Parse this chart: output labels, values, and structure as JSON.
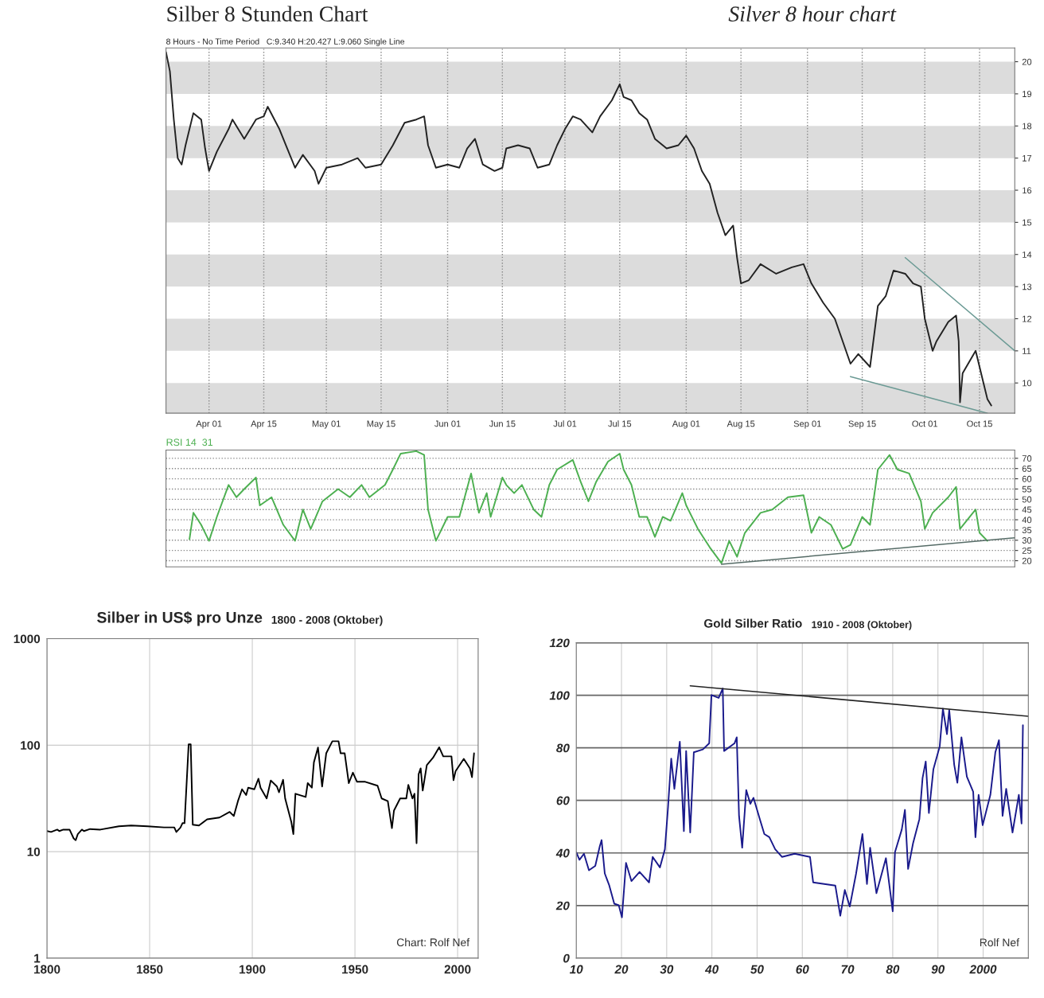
{
  "chart_data": [
    {
      "type": "line",
      "title": "Silber 8 Stunden Chart",
      "subtitle": "Silver 8 hour chart",
      "annotations": [
        "8 Hours - No Time Period   C:9.340 H:20.427 L:9.060 Single Line"
      ],
      "xlim": [
        "2008-03-21",
        "2008-10-24"
      ],
      "ylim": [
        9.06,
        20.43
      ],
      "xticks": [
        {
          "value": "2008-04-01",
          "label": "Apr 01"
        },
        {
          "value": "2008-04-15",
          "label": "Apr 15"
        },
        {
          "value": "2008-05-01",
          "label": "May 01"
        },
        {
          "value": "2008-05-15",
          "label": "May 15"
        },
        {
          "value": "2008-06-01",
          "label": "Jun 01"
        },
        {
          "value": "2008-06-15",
          "label": "Jun 15"
        },
        {
          "value": "2008-07-01",
          "label": "Jul 01"
        },
        {
          "value": "2008-07-15",
          "label": "Jul 15"
        },
        {
          "value": "2008-08-01",
          "label": "Aug 01"
        },
        {
          "value": "2008-08-15",
          "label": "Aug 15"
        },
        {
          "value": "2008-09-01",
          "label": "Sep 01"
        },
        {
          "value": "2008-09-15",
          "label": "Sep 15"
        },
        {
          "value": "2008-10-01",
          "label": "Oct 01"
        },
        {
          "value": "2008-10-15",
          "label": "Oct 15"
        }
      ],
      "yticks": [
        10,
        11,
        12,
        13,
        14,
        15,
        16,
        17,
        18,
        19,
        20
      ],
      "grid": "x",
      "bands": [
        {
          "axis": "y",
          "from": 19,
          "to": 20,
          "color": "#dcdcdc"
        },
        {
          "axis": "y",
          "from": 17,
          "to": 18,
          "color": "#dcdcdc"
        },
        {
          "axis": "y",
          "from": 15,
          "to": 16,
          "color": "#dcdcdc"
        },
        {
          "axis": "y",
          "from": 13,
          "to": 14,
          "color": "#dcdcdc"
        },
        {
          "axis": "y",
          "from": 11,
          "to": 12,
          "color": "#dcdcdc"
        },
        {
          "axis": "y",
          "from": 9.06,
          "to": 10,
          "color": "#dcdcdc"
        }
      ],
      "series": [
        {
          "type": "line",
          "color": "#222222",
          "x": [
            "2008-03-21",
            "2008-03-22",
            "2008-03-23",
            "2008-03-24",
            "2008-03-25",
            "2008-03-26",
            "2008-03-28",
            "2008-03-30",
            "2008-03-31",
            "2008-04-01",
            "2008-04-03",
            "2008-04-06",
            "2008-04-07",
            "2008-04-10",
            "2008-04-13",
            "2008-04-15",
            "2008-04-16",
            "2008-04-19",
            "2008-04-21",
            "2008-04-23",
            "2008-04-25",
            "2008-04-28",
            "2008-04-29",
            "2008-05-01",
            "2008-05-05",
            "2008-05-09",
            "2008-05-11",
            "2008-05-15",
            "2008-05-18",
            "2008-05-21",
            "2008-05-24",
            "2008-05-26",
            "2008-05-27",
            "2008-05-29",
            "2008-06-01",
            "2008-06-04",
            "2008-06-06",
            "2008-06-08",
            "2008-06-10",
            "2008-06-13",
            "2008-06-15",
            "2008-06-16",
            "2008-06-19",
            "2008-06-22",
            "2008-06-24",
            "2008-06-27",
            "2008-06-29",
            "2008-07-01",
            "2008-07-03",
            "2008-07-05",
            "2008-07-08",
            "2008-07-10",
            "2008-07-13",
            "2008-07-15",
            "2008-07-16",
            "2008-07-18",
            "2008-07-20",
            "2008-07-22",
            "2008-07-24",
            "2008-07-27",
            "2008-07-30",
            "2008-08-01",
            "2008-08-03",
            "2008-08-05",
            "2008-08-07",
            "2008-08-09",
            "2008-08-11",
            "2008-08-13",
            "2008-08-14",
            "2008-08-15",
            "2008-08-17",
            "2008-08-20",
            "2008-08-24",
            "2008-08-28",
            "2008-08-31",
            "2008-09-02",
            "2008-09-05",
            "2008-09-08",
            "2008-09-10",
            "2008-09-12",
            "2008-09-14",
            "2008-09-17",
            "2008-09-19",
            "2008-09-21",
            "2008-09-23",
            "2008-09-26",
            "2008-09-28",
            "2008-09-30",
            "2008-10-01",
            "2008-10-03",
            "2008-10-04",
            "2008-10-07",
            "2008-10-09",
            "2008-10-09T16:00",
            "2008-10-10",
            "2008-10-10T16:00",
            "2008-10-14",
            "2008-10-15",
            "2008-10-16",
            "2008-10-17",
            "2008-10-18"
          ],
          "values": [
            20.3,
            19.7,
            18.2,
            17.0,
            16.8,
            17.4,
            18.4,
            18.2,
            17.3,
            16.6,
            17.2,
            17.9,
            18.2,
            17.6,
            18.2,
            18.3,
            18.6,
            17.9,
            17.3,
            16.7,
            17.1,
            16.6,
            16.2,
            16.7,
            16.8,
            17.0,
            16.7,
            16.8,
            17.4,
            18.1,
            18.2,
            18.3,
            17.4,
            16.7,
            16.8,
            16.7,
            17.3,
            17.6,
            16.8,
            16.6,
            16.7,
            17.3,
            17.4,
            17.3,
            16.7,
            16.8,
            17.4,
            17.9,
            18.3,
            18.2,
            17.8,
            18.3,
            18.8,
            19.3,
            18.9,
            18.8,
            18.4,
            18.2,
            17.6,
            17.3,
            17.4,
            17.7,
            17.3,
            16.6,
            16.2,
            15.3,
            14.6,
            14.9,
            13.9,
            13.1,
            13.2,
            13.7,
            13.4,
            13.6,
            13.7,
            13.1,
            12.5,
            12.0,
            11.3,
            10.6,
            10.9,
            10.5,
            12.4,
            12.7,
            13.5,
            13.4,
            13.1,
            13.0,
            12.0,
            11.0,
            11.3,
            11.9,
            12.1,
            11.3,
            9.4,
            10.3,
            11.0,
            10.5,
            10.0,
            9.5,
            9.3
          ]
        },
        {
          "type": "line",
          "color": "#6b9a94",
          "x": [
            "2008-09-26",
            "2008-10-24"
          ],
          "values": [
            13.9,
            11.0
          ]
        },
        {
          "type": "line",
          "color": "#6b9a94",
          "x": [
            "2008-09-12",
            "2008-10-17"
          ],
          "values": [
            10.2,
            9.06
          ]
        }
      ]
    },
    {
      "type": "line",
      "tick_labels": "y",
      "xlim": [
        "2008-03-21",
        "2008-10-24"
      ],
      "ylim": [
        17,
        74
      ],
      "yticks": [
        20,
        25,
        30,
        35,
        40,
        45,
        50,
        55,
        60,
        65,
        70
      ],
      "grid": "y",
      "series": [
        {
          "type": "line",
          "name": "RSI 14  31",
          "color": "#4caf50",
          "x": [
            "2008-03-27",
            "2008-03-28",
            "2008-03-30",
            "2008-04-01",
            "2008-04-03",
            "2008-04-06",
            "2008-04-08",
            "2008-04-10",
            "2008-04-13",
            "2008-04-14",
            "2008-04-17",
            "2008-04-20",
            "2008-04-23",
            "2008-04-25",
            "2008-04-27",
            "2008-04-30",
            "2008-05-04",
            "2008-05-07",
            "2008-05-10",
            "2008-05-12",
            "2008-05-16",
            "2008-05-18",
            "2008-05-20",
            "2008-05-24",
            "2008-05-26",
            "2008-05-27",
            "2008-05-29",
            "2008-06-01",
            "2008-06-04",
            "2008-06-07",
            "2008-06-09",
            "2008-06-11",
            "2008-06-12",
            "2008-06-15",
            "2008-06-16",
            "2008-06-18",
            "2008-06-20",
            "2008-06-23",
            "2008-06-25",
            "2008-06-27",
            "2008-06-29",
            "2008-07-03",
            "2008-07-05",
            "2008-07-07",
            "2008-07-09",
            "2008-07-12",
            "2008-07-15",
            "2008-07-16",
            "2008-07-18",
            "2008-07-20",
            "2008-07-22",
            "2008-07-24",
            "2008-07-26",
            "2008-07-28",
            "2008-07-31",
            "2008-08-01",
            "2008-08-04",
            "2008-08-07",
            "2008-08-10",
            "2008-08-12",
            "2008-08-14",
            "2008-08-16",
            "2008-08-20",
            "2008-08-23",
            "2008-08-27",
            "2008-08-31",
            "2008-09-02",
            "2008-09-04",
            "2008-09-07",
            "2008-09-10",
            "2008-09-12",
            "2008-09-15",
            "2008-09-17",
            "2008-09-19",
            "2008-09-22",
            "2008-09-24",
            "2008-09-27",
            "2008-09-30",
            "2008-10-01",
            "2008-10-03",
            "2008-10-07",
            "2008-10-09",
            "2008-10-10",
            "2008-10-14",
            "2008-10-15",
            "2008-10-17"
          ],
          "values": [
            30.5,
            43.4,
            37.5,
            29.7,
            41.4,
            57,
            51,
            55,
            60.6,
            47,
            51,
            37.5,
            29.7,
            45,
            35.5,
            49,
            55,
            51,
            57,
            51,
            57,
            64.5,
            72.3,
            73.5,
            71.6,
            45,
            29.7,
            41.4,
            41.4,
            62.6,
            43.4,
            53,
            41.4,
            60.6,
            57,
            53,
            57,
            45,
            41.4,
            57,
            64.5,
            69.2,
            58.6,
            49,
            58.6,
            68.4,
            72.3,
            64.5,
            57,
            41.4,
            41.4,
            31.6,
            41.4,
            39.5,
            53,
            47,
            35.5,
            26.6,
            18.8,
            29.7,
            21.9,
            33.6,
            43.4,
            45,
            51,
            52,
            33.6,
            41.4,
            37.5,
            25.8,
            27.7,
            41.4,
            37.5,
            64.5,
            71.6,
            64.5,
            62.6,
            49,
            35.5,
            43.4,
            51,
            56,
            35.5,
            45,
            33.6,
            29.7
          ]
        },
        {
          "type": "line",
          "color": "#556b66",
          "x": [
            "2008-08-10",
            "2008-10-24"
          ],
          "values": [
            18.3,
            31.2
          ]
        }
      ]
    },
    {
      "type": "line",
      "title": "Silber in US$ pro Unze",
      "subtitle": "1800 - 2008 (Oktober)",
      "annotations": [
        "Chart: Rolf Nef"
      ],
      "log": "y",
      "grid": true,
      "xlim": [
        1800,
        2010
      ],
      "ylim": [
        1,
        1000
      ],
      "xticks": [
        1800,
        1850,
        1900,
        1950,
        2000
      ],
      "yticks": [
        1,
        10,
        100,
        1000
      ],
      "series": [
        {
          "type": "line",
          "color": "#000000",
          "x": [
            1800,
            1802,
            1805,
            1806,
            1808,
            1811,
            1813,
            1814,
            1815,
            1817,
            1818,
            1821,
            1826,
            1835,
            1841,
            1849,
            1857,
            1862,
            1863,
            1865,
            1866,
            1867,
            1869,
            1870,
            1871,
            1874,
            1878,
            1884,
            1889,
            1891,
            1893,
            1895,
            1897,
            1898,
            1901,
            1903,
            1904,
            1907,
            1909,
            1912,
            1913,
            1915,
            1916,
            1919,
            1920,
            1921,
            1926,
            1927,
            1929,
            1930,
            1932,
            1934,
            1936,
            1939,
            1942,
            1943,
            1945,
            1947,
            1949,
            1951,
            1955,
            1961,
            1963,
            1966,
            1968,
            1969,
            1972,
            1975,
            1976,
            1978,
            1979,
            1980,
            1981,
            1982,
            1983,
            1985,
            1988,
            1991,
            1993,
            1997,
            1998,
            1999,
            2003,
            2006,
            2007,
            2008
          ],
          "values": [
            15.6,
            15.3,
            16.1,
            15.6,
            16.1,
            16.1,
            13.3,
            12.8,
            14.6,
            16.1,
            15.6,
            16.3,
            16.1,
            17.3,
            17.6,
            17.3,
            16.9,
            16.9,
            15.3,
            16.8,
            18.5,
            18.5,
            102,
            102,
            17.9,
            17.6,
            20.1,
            20.9,
            23.6,
            21.6,
            29.8,
            38.5,
            34.0,
            39.9,
            38.5,
            48.4,
            39.9,
            31.6,
            46.6,
            40.9,
            36.1,
            47.3,
            31.6,
            19.0,
            14.6,
            35.0,
            32.6,
            44.0,
            39.9,
            69,
            95,
            40.9,
            83.9,
            108.9,
            108.9,
            83.9,
            83.9,
            44.0,
            55.2,
            45.3,
            45.3,
            41.6,
            31.6,
            29.8,
            16.6,
            24.3,
            31.6,
            31.6,
            42.4,
            31.6,
            35.0,
            12.0,
            53.3,
            60.6,
            37.5,
            64.9,
            76.1,
            95.6,
            78.5,
            78.5,
            46.9,
            57.0,
            74.4,
            60.6,
            50.0,
            83.9
          ]
        }
      ]
    },
    {
      "type": "line",
      "title": "Gold Silber Ratio",
      "subtitle": "1910 - 2008 (Oktober)",
      "annotations": [
        "Rolf Nef"
      ],
      "grid": true,
      "xlim": [
        1910,
        2010
      ],
      "ylim": [
        0,
        120
      ],
      "xticks": [
        {
          "value": 1910,
          "label": "10"
        },
        {
          "value": 1920,
          "label": "20"
        },
        {
          "value": 1930,
          "label": "30"
        },
        {
          "value": 1940,
          "label": "40"
        },
        {
          "value": 1950,
          "label": "50"
        },
        {
          "value": 1960,
          "label": "60"
        },
        {
          "value": 1970,
          "label": "70"
        },
        {
          "value": 1980,
          "label": "80"
        },
        {
          "value": 1990,
          "label": "90"
        },
        2000
      ],
      "yticks": [
        0,
        20,
        40,
        60,
        80,
        100,
        120
      ],
      "series": [
        {
          "type": "line",
          "color": "#1a1a8c",
          "x": [
            1910,
            1910.7,
            1911.7,
            1912.8,
            1914.2,
            1915.2,
            1915.6,
            1916.3,
            1917.3,
            1918.4,
            1919.4,
            1920.1,
            1921,
            1922.2,
            1924,
            1926.1,
            1926.9,
            1928.5,
            1929.6,
            1930.3,
            1931,
            1931.7,
            1932.9,
            1933.8,
            1934.3,
            1935.2,
            1936,
            1938,
            1939.4,
            1939.9,
            1941.5,
            1942.4,
            1942.7,
            1945,
            1945.5,
            1946,
            1946.7,
            1947.6,
            1948.5,
            1949.2,
            1950.6,
            1951.6,
            1952.7,
            1954,
            1955.5,
            1958.3,
            1961.7,
            1962.4,
            1967.3,
            1968.4,
            1969.4,
            1970.5,
            1971.9,
            1973.3,
            1974.3,
            1975,
            1976.4,
            1978.5,
            1980,
            1980.5,
            1982,
            1982.7,
            1983.4,
            1984.5,
            1985.9,
            1986.6,
            1987.3,
            1988,
            1989,
            1990.4,
            1991.1,
            1992,
            1992.5,
            1993.6,
            1994.3,
            1995.2,
            1996.4,
            1997.8,
            1998.3,
            1999,
            1999.9,
            2001.6,
            2002.7,
            2003.5,
            2004.3,
            2005.1,
            2006.5,
            2007.9,
            2008.5,
            2008.8
          ],
          "values": [
            40.3,
            37.4,
            39.7,
            33.4,
            35.1,
            42.6,
            44.9,
            32.2,
            27.6,
            20.7,
            20.1,
            15.5,
            36.2,
            29.3,
            32.8,
            28.8,
            38.5,
            34.5,
            41.4,
            57.5,
            75.9,
            64.4,
            82.3,
            48.3,
            78.8,
            47.8,
            78.3,
            79.4,
            81.7,
            100.1,
            99.0,
            102.6,
            78.8,
            81.7,
            84,
            54.1,
            42,
            63.9,
            58.7,
            61,
            52.9,
            47.2,
            46,
            41.4,
            38.5,
            39.7,
            38.5,
            28.8,
            27.6,
            16.1,
            25.9,
            19.6,
            32.2,
            47.2,
            28.2,
            42,
            24.7,
            38,
            17.8,
            40.3,
            48.9,
            56.4,
            33.9,
            43.7,
            52.9,
            68.5,
            74.8,
            55.2,
            71.9,
            80.6,
            94.9,
            85.2,
            94.4,
            73.6,
            66.7,
            84.0,
            69,
            63.3,
            46,
            62.1,
            50.6,
            62.1,
            78.3,
            82.9,
            54.1,
            64.4,
            47.8,
            62.1,
            51.2,
            88.6
          ]
        },
        {
          "type": "line",
          "color": "#222222",
          "x": [
            1935.2,
            2010
          ],
          "values": [
            103.6,
            92.0
          ]
        }
      ]
    }
  ]
}
